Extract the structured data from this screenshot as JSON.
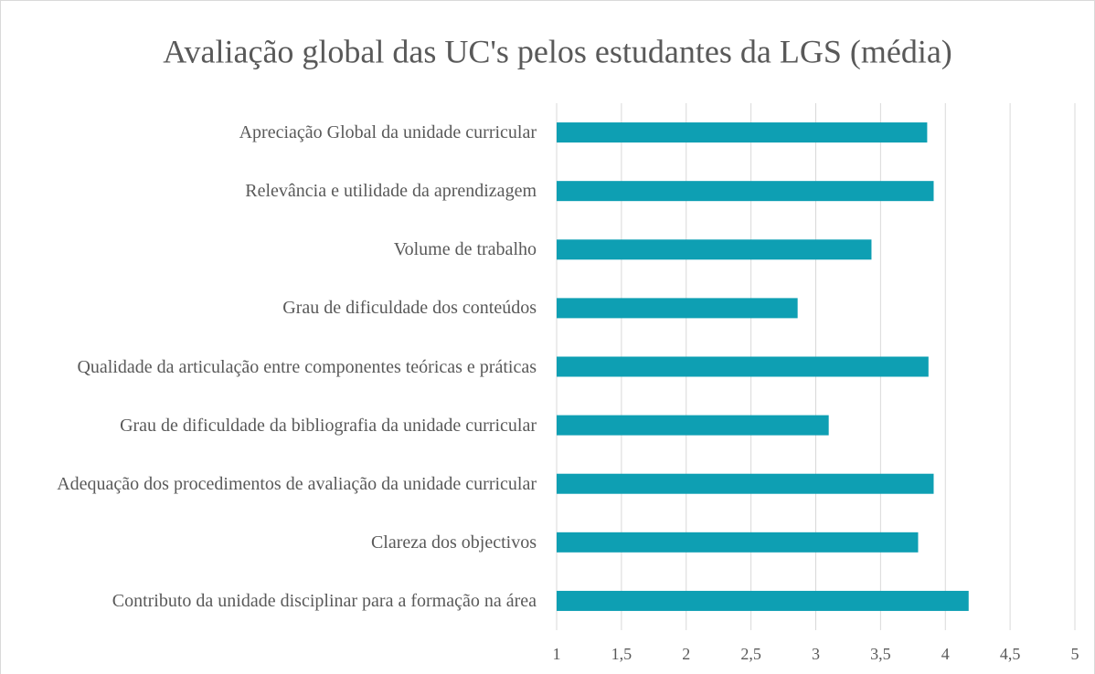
{
  "chart_data": {
    "type": "bar",
    "orientation": "horizontal",
    "title": "Avaliação global das UC's pelos estudantes da LGS (média)",
    "categories": [
      "Apreciação Global da unidade curricular",
      "Relevância e utilidade da aprendizagem",
      "Volume de trabalho",
      "Grau de dificuldade dos conteúdos",
      "Qualidade da articulação entre componentes teóricas e práticas",
      "Grau de dificuldade da bibliografia da unidade curricular",
      "Adequação dos procedimentos de avaliação da unidade curricular",
      "Clareza dos objectivos",
      "Contributo da unidade disciplinar para a formação na área"
    ],
    "values": [
      3.86,
      3.91,
      3.43,
      2.86,
      3.87,
      3.1,
      3.91,
      3.79,
      4.18
    ],
    "color": "#0e9fb3",
    "xlim": [
      1,
      5
    ],
    "xticks": [
      1,
      {
        "value": 1.5,
        "label": "1,5"
      },
      2,
      {
        "value": 2.5,
        "label": "2,5"
      },
      3,
      {
        "value": 3.5,
        "label": "3,5"
      },
      4,
      {
        "value": 4.5,
        "label": "4,5"
      },
      5
    ],
    "grid": true
  }
}
